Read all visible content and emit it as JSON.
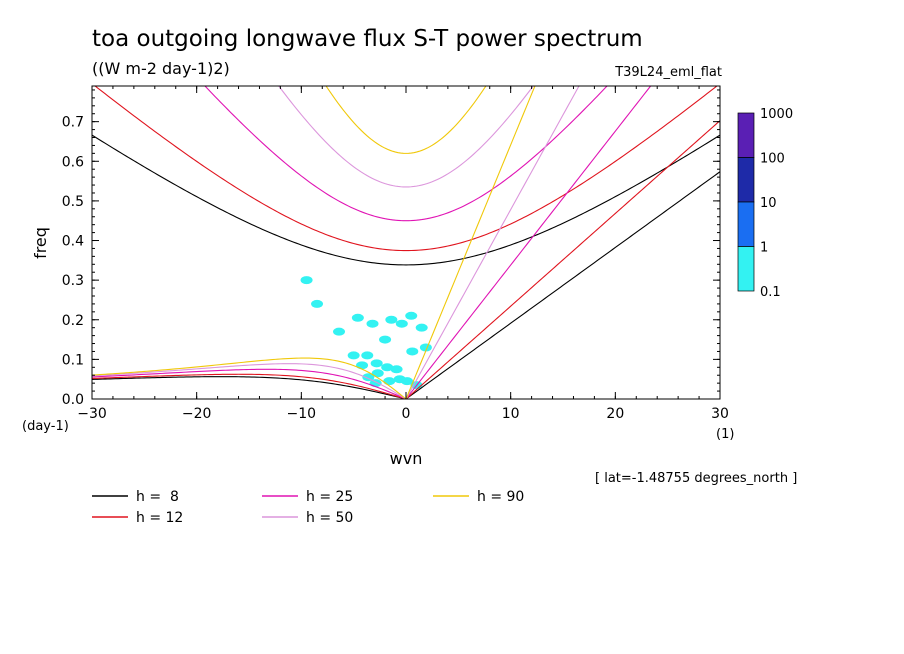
{
  "chart_data": {
    "type": "line",
    "title": "toa outgoing longwave flux S-T power spectrum",
    "subtitle": "((W m-2 day-1)2)",
    "run_label": "T39L24_eml_flat",
    "xlabel": "wvn",
    "ylabel": "freq",
    "y_unit": "(day-1)",
    "x_unit": "(1)",
    "xlim": [
      -30,
      30
    ],
    "ylim": [
      0,
      0.79
    ],
    "x_ticks": [
      "-30",
      "-20",
      "-10",
      "0",
      "10",
      "20",
      "30"
    ],
    "y_ticks": [
      "0.0",
      "0.1",
      "0.2",
      "0.3",
      "0.4",
      "0.5",
      "0.6",
      "0.7"
    ],
    "location_note": "[ lat=-1.48755 degrees_north ]",
    "colorbar": {
      "labels": [
        "1000",
        "100",
        "10",
        "1",
        "0.1"
      ],
      "colors": [
        "#5a1fb4",
        "#1e2aa8",
        "#1a6ef2",
        "#33f2f2"
      ]
    },
    "series": [
      {
        "name": "h =  8",
        "h": 8,
        "color": "#000000"
      },
      {
        "name": "h = 12",
        "h": 12,
        "color": "#e0141e"
      },
      {
        "name": "h = 25",
        "h": 25,
        "color": "#e014b4"
      },
      {
        "name": "h = 50",
        "h": 50,
        "color": "#dc96dc"
      },
      {
        "name": "h = 90",
        "h": 90,
        "color": "#f0c80a"
      }
    ],
    "contour_cells_0p1_to_1": [
      [
        -9.5,
        0.3
      ],
      [
        -8.5,
        0.24
      ],
      [
        -6.4,
        0.17
      ],
      [
        -4.6,
        0.205
      ],
      [
        -3.2,
        0.19
      ],
      [
        -1.4,
        0.2
      ],
      [
        -0.4,
        0.19
      ],
      [
        0.5,
        0.21
      ],
      [
        1.5,
        0.18
      ],
      [
        1.9,
        0.13
      ],
      [
        0.6,
        0.12
      ],
      [
        -2,
        0.15
      ],
      [
        -5,
        0.11
      ],
      [
        -3.7,
        0.11
      ],
      [
        -2.8,
        0.09
      ],
      [
        -1.8,
        0.08
      ],
      [
        -0.9,
        0.075
      ],
      [
        -3.6,
        0.055
      ],
      [
        -2.7,
        0.065
      ],
      [
        -1.6,
        0.045
      ],
      [
        -0.6,
        0.05
      ],
      [
        0.1,
        0.045
      ],
      [
        1,
        0.035
      ],
      [
        -4.2,
        0.085
      ],
      [
        -2.9,
        0.04
      ]
    ]
  }
}
